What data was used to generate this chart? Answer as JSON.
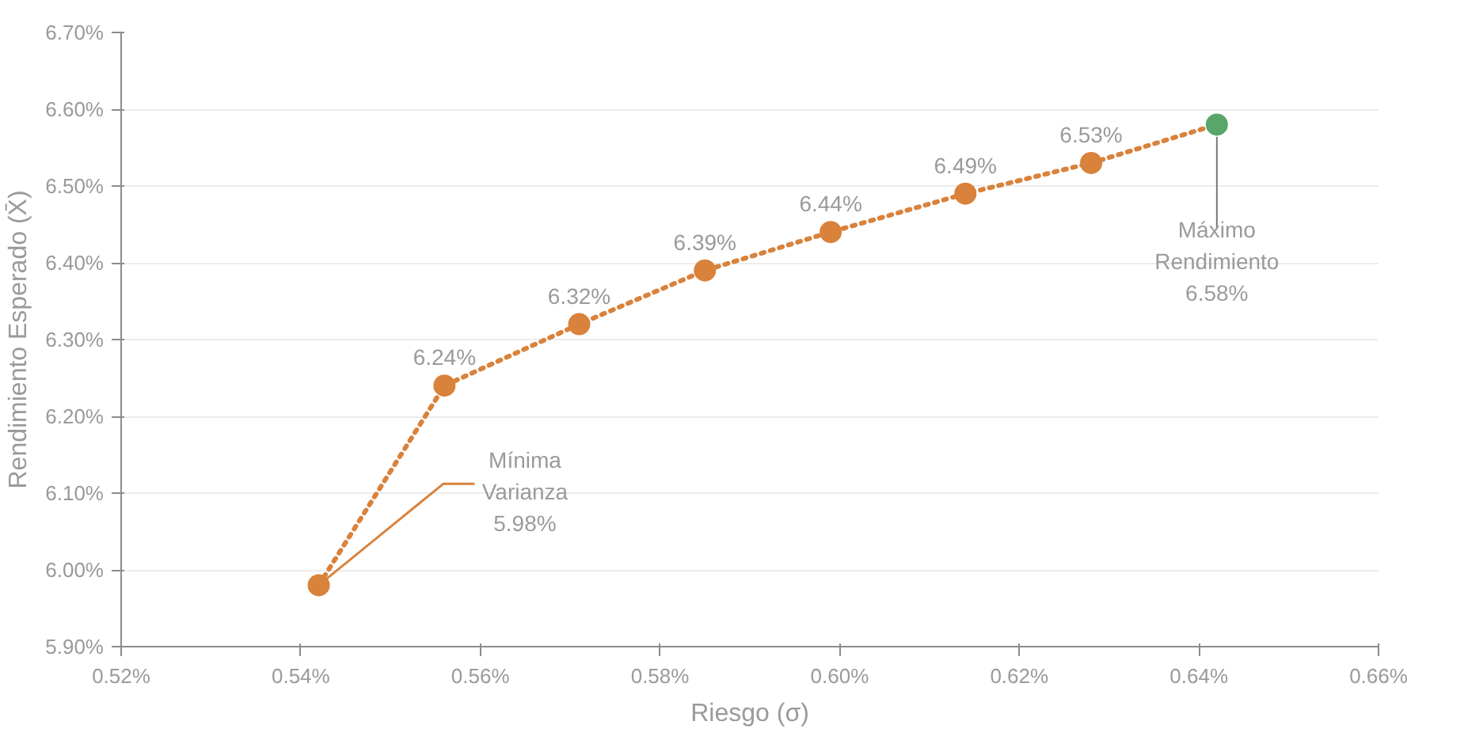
{
  "chart_data": {
    "type": "line",
    "xlabel": "Riesgo (σ)",
    "ylabel": "Rendimiento Esperado (X̄)",
    "xlim": [
      0.52,
      0.66
    ],
    "ylim": [
      5.9,
      6.7
    ],
    "xticks": [
      {
        "value": 0.52,
        "label": "0.52%"
      },
      {
        "value": 0.54,
        "label": "0.54%"
      },
      {
        "value": 0.56,
        "label": "0.56%"
      },
      {
        "value": 0.58,
        "label": "0.58%"
      },
      {
        "value": 0.6,
        "label": "0.60%"
      },
      {
        "value": 0.62,
        "label": "0.62%"
      },
      {
        "value": 0.64,
        "label": "0.64%"
      },
      {
        "value": 0.66,
        "label": "0.66%"
      }
    ],
    "yticks": [
      {
        "value": 5.9,
        "label": "5.90%"
      },
      {
        "value": 6.0,
        "label": "6.00%"
      },
      {
        "value": 6.1,
        "label": "6.10%"
      },
      {
        "value": 6.2,
        "label": "6.20%"
      },
      {
        "value": 6.3,
        "label": "6.30%"
      },
      {
        "value": 6.4,
        "label": "6.40%"
      },
      {
        "value": 6.5,
        "label": "6.50%"
      },
      {
        "value": 6.6,
        "label": "6.60%"
      },
      {
        "value": 6.7,
        "label": "6.70%"
      }
    ],
    "grid": "y",
    "marker": "circle",
    "line_style": "dotted",
    "series": [
      {
        "color": "#d9823b",
        "colors": [
          "#d9823b",
          "#d9823b",
          "#d9823b",
          "#d9823b",
          "#d9823b",
          "#d9823b",
          "#d9823b",
          "#5aa56a"
        ],
        "x": [
          0.542,
          0.556,
          0.571,
          0.585,
          0.599,
          0.614,
          0.628,
          0.642
        ],
        "values": [
          5.98,
          6.24,
          6.32,
          6.39,
          6.44,
          6.49,
          6.53,
          6.58
        ],
        "value_labels": [
          null,
          "6.24%",
          "6.32%",
          "6.39%",
          "6.44%",
          "6.49%",
          "6.53%",
          null
        ]
      }
    ],
    "annotations": [
      {
        "text": "Mínima\nVarianza\n5.98%",
        "x": 0.542,
        "y": 5.98
      },
      {
        "text": "Máximo\nRendimiento\n6.58%",
        "x": 0.642,
        "y": 6.58
      }
    ]
  }
}
